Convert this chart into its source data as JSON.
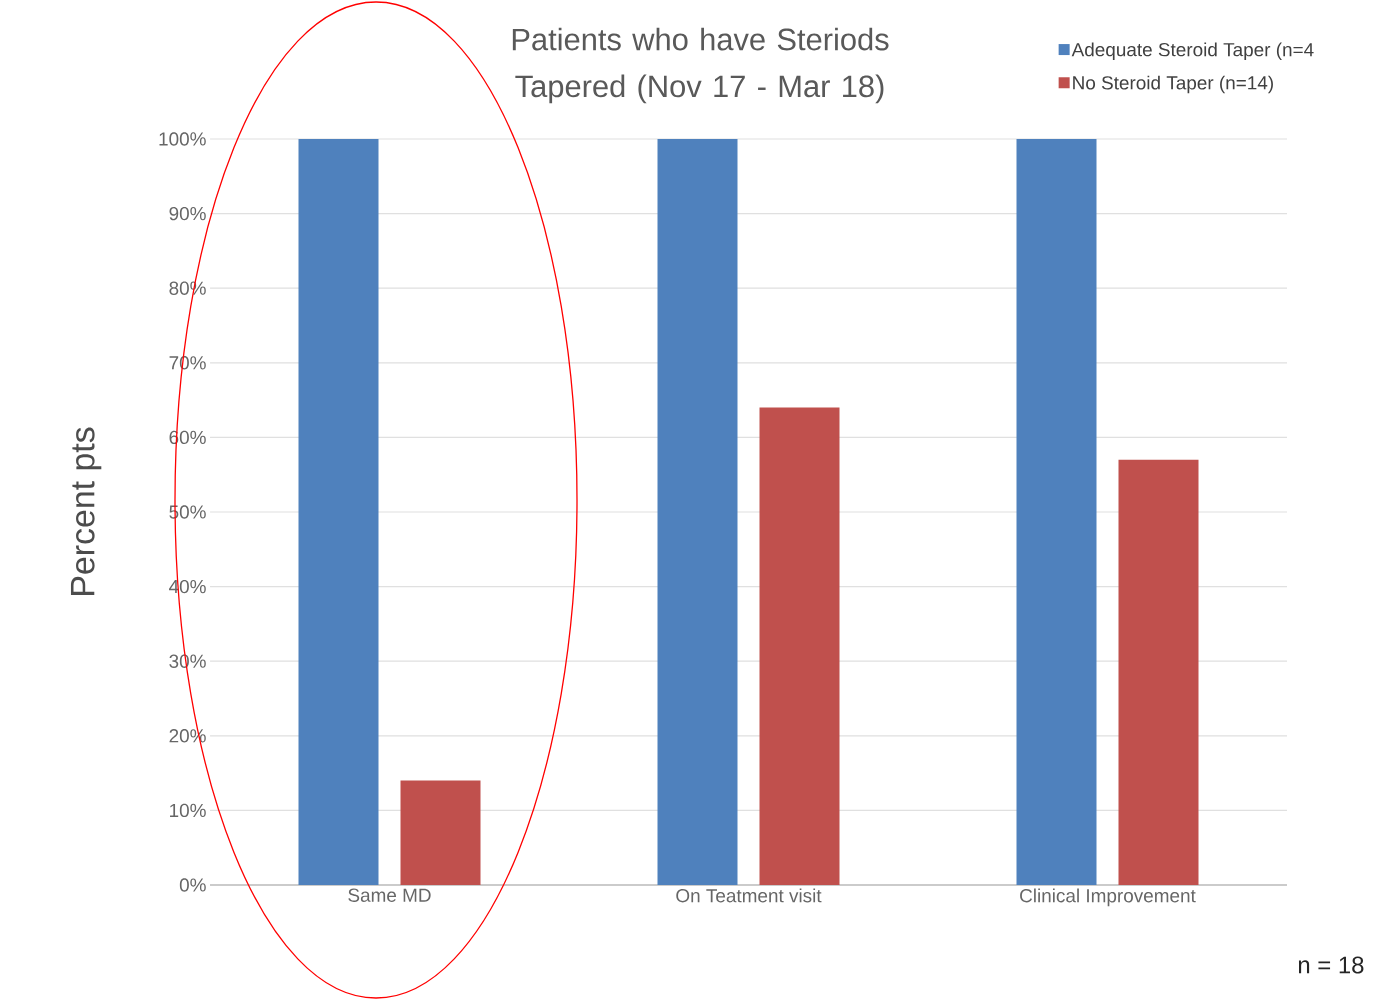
{
  "chart_data": {
    "type": "bar",
    "title": "Patients who have Steriods Tapered (Nov 17 - Mar 18)",
    "ylabel": "Percent pts",
    "categories": [
      "Same MD",
      "On Teatment visit",
      "Clinical Improvement"
    ],
    "series": [
      {
        "name": "Adequate Steroid Taper (n=4",
        "color": "#4f81bd",
        "values": [
          100,
          100,
          100
        ]
      },
      {
        "name": "No Steroid Taper (n=14)",
        "color": "#c0504d",
        "values": [
          14,
          64,
          57
        ]
      }
    ],
    "ylim": [
      0,
      100
    ],
    "yticks": [
      {
        "value": 0,
        "label": "0%"
      },
      {
        "value": 10,
        "label": "10%"
      },
      {
        "value": 20,
        "label": "20%"
      },
      {
        "value": 30,
        "label": "30%"
      },
      {
        "value": 40,
        "label": "40%"
      },
      {
        "value": 50,
        "label": "50%"
      },
      {
        "value": 60,
        "label": "60%"
      },
      {
        "value": 70,
        "label": "70%"
      },
      {
        "value": 80,
        "label": "80%"
      },
      {
        "value": 90,
        "label": "90%"
      },
      {
        "value": 100,
        "label": "100%"
      }
    ],
    "grid": "y",
    "legend": "top right",
    "annotations": [
      "n = 18"
    ]
  }
}
